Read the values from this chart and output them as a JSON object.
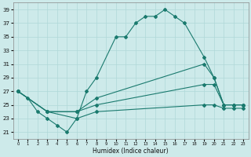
{
  "xlabel": "Humidex (Indice chaleur)",
  "color": "#1a7a6e",
  "bg_color": "#cdeaea",
  "grid_color": "#b0d8d8",
  "ylim": [
    20,
    40
  ],
  "yticks": [
    21,
    23,
    25,
    27,
    29,
    31,
    33,
    35,
    37,
    39
  ],
  "xlim": [
    -0.5,
    23.5
  ],
  "xticks": [
    0,
    1,
    2,
    3,
    4,
    5,
    6,
    7,
    8,
    9,
    10,
    11,
    12,
    13,
    14,
    15,
    16,
    17,
    18,
    19,
    20,
    21,
    22,
    23
  ],
  "series1_x": [
    0,
    1,
    2,
    3,
    4,
    5,
    6,
    7,
    8,
    10,
    11,
    12,
    13,
    14,
    15,
    16,
    17,
    19,
    20,
    21,
    22,
    23
  ],
  "series1_y": [
    27,
    26,
    24,
    23,
    22,
    21,
    23,
    27,
    29,
    35,
    35,
    37,
    38,
    38,
    39,
    38,
    37,
    32,
    29,
    25,
    25,
    25
  ],
  "series2_x": [
    0,
    3,
    6,
    8,
    19,
    20,
    21,
    22,
    23
  ],
  "series2_y": [
    27,
    24,
    24,
    26,
    31,
    29,
    25,
    25,
    25
  ],
  "series3_x": [
    0,
    3,
    6,
    8,
    19,
    20,
    21,
    22,
    23
  ],
  "series3_y": [
    27,
    24,
    24,
    25,
    28,
    28,
    25,
    25,
    25
  ],
  "series4_x": [
    0,
    3,
    6,
    8,
    19,
    20,
    21,
    22,
    23
  ],
  "series4_y": [
    27,
    24,
    23,
    24,
    25,
    25,
    24.5,
    24.5,
    24.5
  ],
  "marker": "D",
  "markersize": 2.0,
  "linewidth": 0.8
}
